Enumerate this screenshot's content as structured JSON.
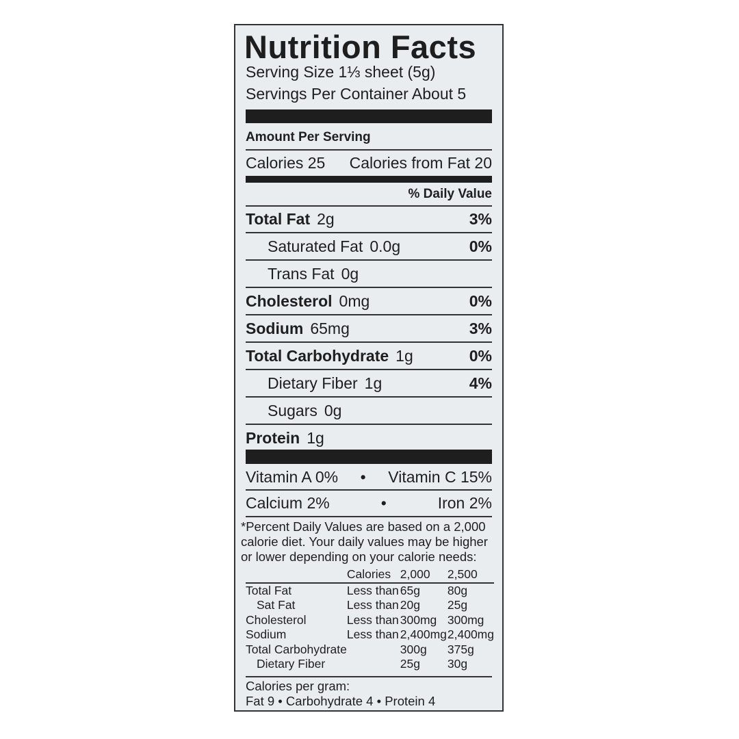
{
  "title": "Nutrition Facts",
  "serving_size": "Serving Size 1⅓ sheet  (5g)",
  "servings_per_container": "Servings Per Container About 5",
  "amount_per_serving": "Amount Per Serving",
  "calories": "Calories 25",
  "calories_from_fat": "Calories from Fat 20",
  "daily_value_header": "% Daily Value",
  "nutrients": [
    {
      "name": "Total Fat",
      "amount": "2g",
      "dv": "3%"
    },
    {
      "name": "Saturated Fat",
      "amount": "0.0g",
      "dv": "0%"
    },
    {
      "name": "Trans Fat",
      "amount": "0g",
      "dv": ""
    },
    {
      "name": "Cholesterol",
      "amount": "0mg",
      "dv": "0%"
    },
    {
      "name": "Sodium",
      "amount": "65mg",
      "dv": "3%"
    },
    {
      "name": "Total Carbohydrate",
      "amount": "1g",
      "dv": "0%"
    },
    {
      "name": "Dietary Fiber",
      "amount": "1g",
      "dv": "4%"
    },
    {
      "name": "Sugars",
      "amount": "0g",
      "dv": ""
    },
    {
      "name": "Protein",
      "amount": "1g",
      "dv": ""
    }
  ],
  "vitamins": [
    {
      "left": "Vitamin A 0%",
      "right": "Vitamin C 15%"
    },
    {
      "left": "Calcium 2%",
      "right": "Iron 2%"
    }
  ],
  "bullet": "•",
  "footnote": "*Percent Daily Values are based on a 2,000 calorie diet. Your daily values may be higher or lower depending on your calorie needs:",
  "dv_table": {
    "header": [
      "",
      "Calories",
      "2,000",
      "2,500"
    ],
    "rows": [
      [
        "Total Fat",
        "Less than",
        "65g",
        "80g"
      ],
      [
        "Sat Fat",
        "Less than",
        "20g",
        "25g"
      ],
      [
        "Cholesterol",
        "Less than",
        "300mg",
        "300mg"
      ],
      [
        "Sodium",
        "Less than",
        "2,400mg",
        "2,400mg"
      ],
      [
        "Total Carbohydrate",
        "",
        "300g",
        "375g"
      ],
      [
        "Dietary Fiber",
        "",
        "25g",
        "30g"
      ]
    ]
  },
  "calories_per_gram": "Calories per gram:",
  "calories_per_gram_values": "Fat 9 • Carbohydrate 4 • Protein 4"
}
